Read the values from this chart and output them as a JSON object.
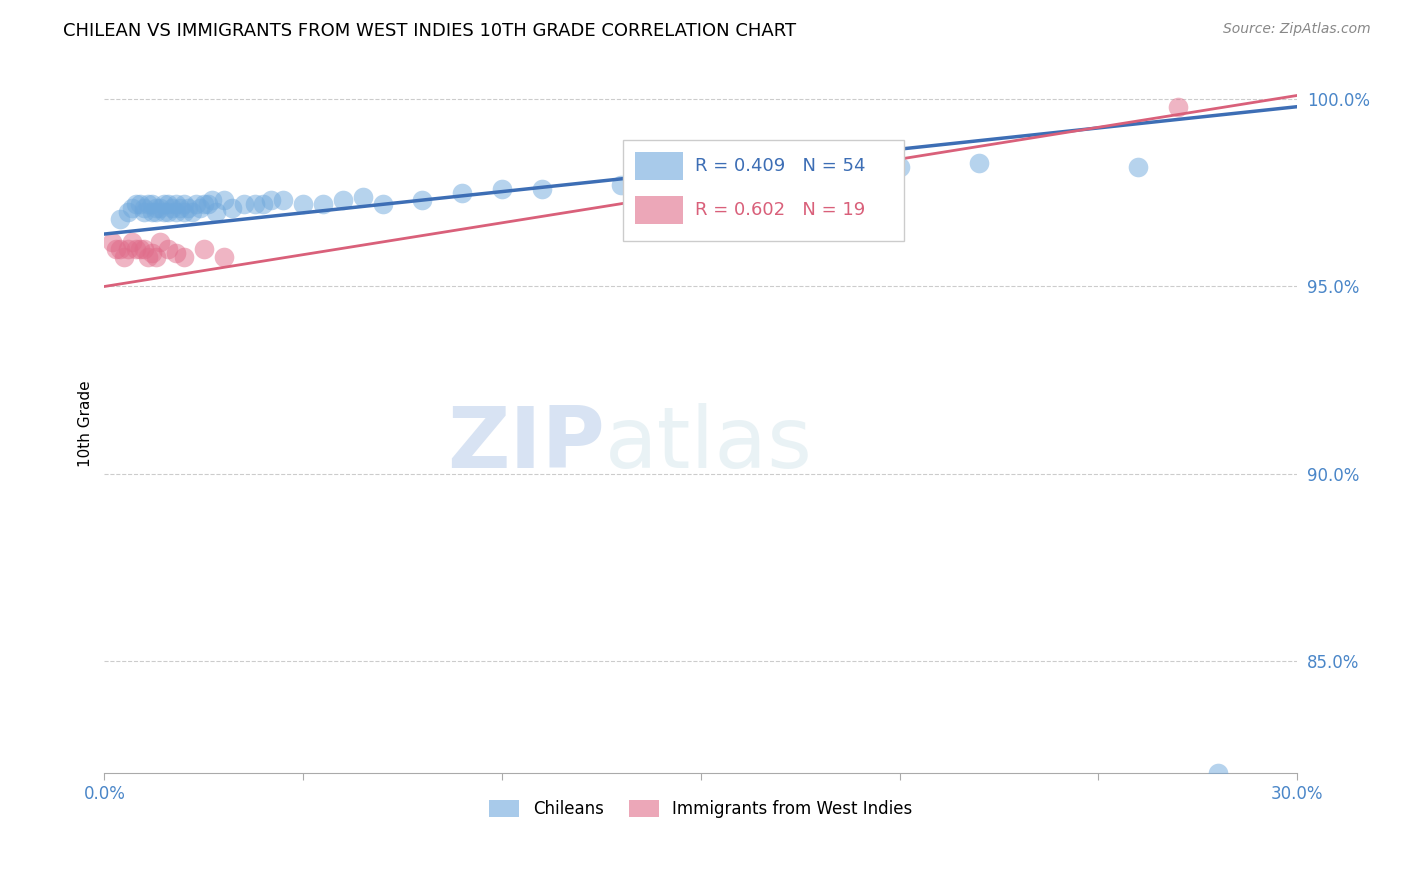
{
  "title": "CHILEAN VS IMMIGRANTS FROM WEST INDIES 10TH GRADE CORRELATION CHART",
  "source": "Source: ZipAtlas.com",
  "ylabel_label": "10th Grade",
  "xlim": [
    0.0,
    0.3
  ],
  "ylim": [
    0.82,
    1.007
  ],
  "xticks": [
    0.0,
    0.05,
    0.1,
    0.15,
    0.2,
    0.25,
    0.3
  ],
  "xticklabels": [
    "0.0%",
    "",
    "",
    "",
    "",
    "",
    "30.0%"
  ],
  "yticks": [
    0.85,
    0.9,
    0.95,
    1.0
  ],
  "yticklabels": [
    "85.0%",
    "90.0%",
    "95.0%",
    "100.0%"
  ],
  "legend_labels": [
    "Chileans",
    "Immigrants from West Indies"
  ],
  "legend_R_blue": "R = 0.409",
  "legend_N_blue": "N = 54",
  "legend_R_pink": "R = 0.602",
  "legend_N_pink": "N = 19",
  "blue_color": "#6fa8dc",
  "pink_color": "#e06c8a",
  "blue_line_color": "#3d6eb5",
  "pink_line_color": "#d9607a",
  "grid_color": "#cccccc",
  "axis_label_color": "#4a86c8",
  "watermark_zip": "ZIP",
  "watermark_atlas": "atlas",
  "blue_scatter_x": [
    0.004,
    0.006,
    0.007,
    0.008,
    0.009,
    0.01,
    0.01,
    0.011,
    0.012,
    0.012,
    0.013,
    0.013,
    0.014,
    0.015,
    0.015,
    0.016,
    0.016,
    0.017,
    0.018,
    0.018,
    0.019,
    0.02,
    0.02,
    0.021,
    0.022,
    0.023,
    0.024,
    0.025,
    0.026,
    0.027,
    0.028,
    0.03,
    0.032,
    0.035,
    0.038,
    0.04,
    0.042,
    0.045,
    0.05,
    0.055,
    0.06,
    0.065,
    0.07,
    0.08,
    0.09,
    0.1,
    0.11,
    0.13,
    0.15,
    0.16,
    0.2,
    0.22,
    0.26,
    0.28
  ],
  "blue_scatter_y": [
    0.968,
    0.97,
    0.971,
    0.972,
    0.972,
    0.971,
    0.97,
    0.972,
    0.97,
    0.972,
    0.97,
    0.971,
    0.971,
    0.97,
    0.972,
    0.97,
    0.972,
    0.971,
    0.972,
    0.97,
    0.971,
    0.97,
    0.972,
    0.971,
    0.97,
    0.972,
    0.971,
    0.972,
    0.972,
    0.973,
    0.97,
    0.973,
    0.971,
    0.972,
    0.972,
    0.972,
    0.973,
    0.973,
    0.972,
    0.972,
    0.973,
    0.974,
    0.972,
    0.973,
    0.975,
    0.976,
    0.976,
    0.977,
    0.977,
    0.98,
    0.982,
    0.983,
    0.982,
    0.82
  ],
  "pink_scatter_x": [
    0.002,
    0.003,
    0.004,
    0.005,
    0.006,
    0.007,
    0.008,
    0.009,
    0.01,
    0.011,
    0.012,
    0.013,
    0.014,
    0.016,
    0.018,
    0.02,
    0.025,
    0.03,
    0.27
  ],
  "pink_scatter_y": [
    0.962,
    0.96,
    0.96,
    0.958,
    0.96,
    0.962,
    0.96,
    0.96,
    0.96,
    0.958,
    0.959,
    0.958,
    0.962,
    0.96,
    0.959,
    0.958,
    0.96,
    0.958,
    0.998
  ],
  "blue_line_x": [
    0.0,
    0.3
  ],
  "blue_line_y": [
    0.964,
    0.998
  ],
  "pink_line_x": [
    0.0,
    0.3
  ],
  "pink_line_y": [
    0.95,
    1.001
  ]
}
